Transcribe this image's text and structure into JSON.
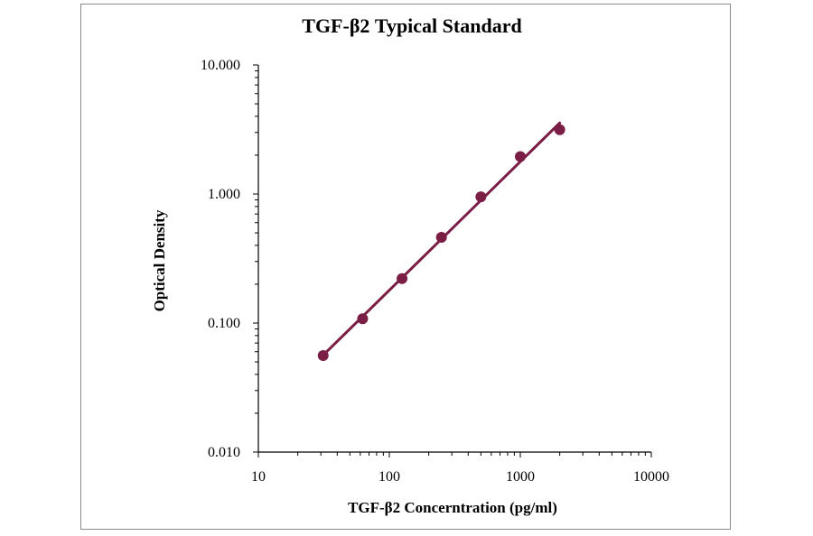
{
  "chart_data": {
    "type": "scatter",
    "title": "TGF-β2 Typical Standard",
    "xlabel": "TGF-β2 Concerntration (pg/ml)",
    "ylabel": "Optical Density",
    "xscale": "log",
    "yscale": "log",
    "xlim": [
      10,
      10000
    ],
    "ylim": [
      0.01,
      10
    ],
    "x_ticks": [
      "10",
      "100",
      "1000",
      "10000"
    ],
    "y_ticks": [
      "0.010",
      "0.100",
      "1.000",
      "10.000"
    ],
    "grid": false,
    "legend": "none",
    "series": [
      {
        "x": [
          31.25,
          62.5,
          125,
          250,
          500,
          1000,
          2000
        ],
        "y": [
          0.056,
          0.108,
          0.221,
          0.462,
          0.951,
          1.95,
          3.15
        ],
        "color": "#7b1e45",
        "fit_line": true
      }
    ]
  }
}
